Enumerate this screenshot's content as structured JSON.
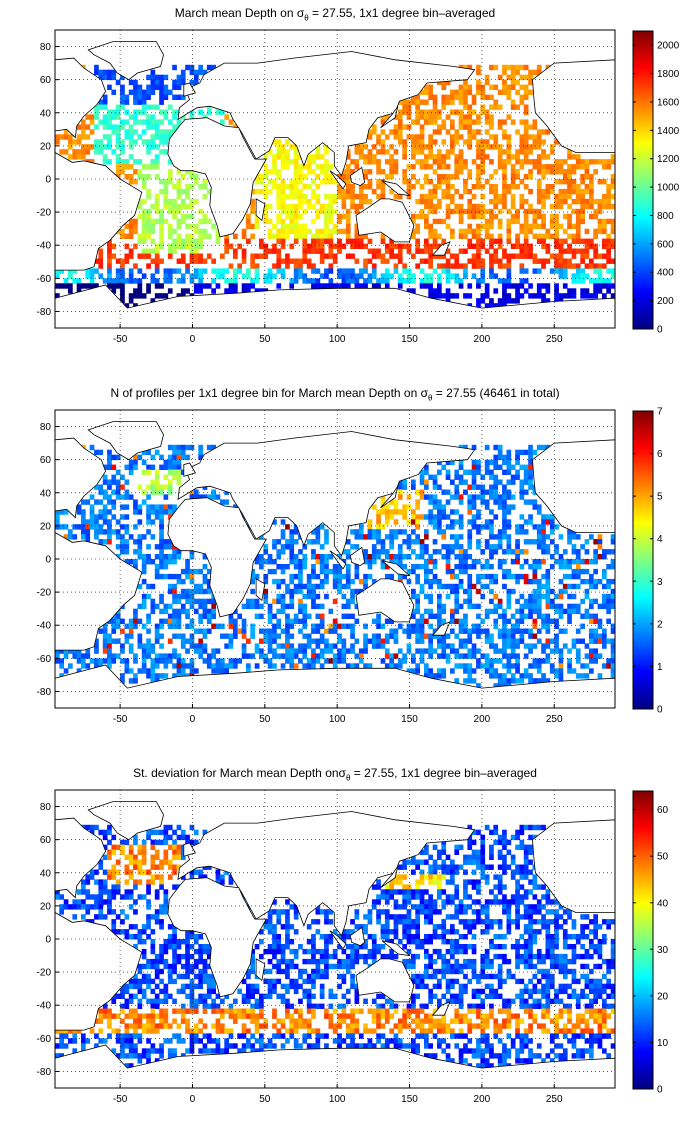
{
  "chart_data": [
    {
      "type": "heatmap",
      "title_pre": "March mean Depth on σ",
      "title_sub": "θ",
      "title_post": " = 27.55, 1x1 degree bin–averaged",
      "x_ticks": [
        "-50",
        "0",
        "50",
        "100",
        "150",
        "200",
        "250"
      ],
      "y_ticks": [
        "80",
        "60",
        "40",
        "20",
        "0",
        "-20",
        "-40",
        "-60",
        "-80"
      ],
      "xlim": [
        -95,
        292
      ],
      "ylim": [
        -90,
        90
      ],
      "grid": true,
      "colormap": "jet",
      "colorbar": {
        "min": 0,
        "max": 2100,
        "ticks": [
          "0",
          "200",
          "400",
          "600",
          "800",
          "1000",
          "1200",
          "1400",
          "1600",
          "1800",
          "2000"
        ]
      }
    },
    {
      "type": "heatmap",
      "title_pre": "N of profiles per 1x1 degree bin for March mean Depth on σ",
      "title_sub": "θ",
      "title_post": " = 27.55 (46461 in total)",
      "x_ticks": [
        "-50",
        "0",
        "50",
        "100",
        "150",
        "200",
        "250"
      ],
      "y_ticks": [
        "80",
        "60",
        "40",
        "20",
        "0",
        "-20",
        "-40",
        "-60",
        "-80"
      ],
      "xlim": [
        -95,
        292
      ],
      "ylim": [
        -90,
        90
      ],
      "grid": true,
      "colormap": "jet",
      "colorbar": {
        "min": 0,
        "max": 7,
        "ticks": [
          "0",
          "1",
          "2",
          "3",
          "4",
          "5",
          "6",
          "7"
        ]
      }
    },
    {
      "type": "heatmap",
      "title_pre": "St. deviation for March mean Depth onσ",
      "title_sub": "θ",
      "title_post": " = 27.55, 1x1 degree bin–averaged",
      "x_ticks": [
        "-50",
        "0",
        "50",
        "100",
        "150",
        "200",
        "250"
      ],
      "y_ticks": [
        "80",
        "60",
        "40",
        "20",
        "0",
        "-20",
        "-40",
        "-60",
        "-80"
      ],
      "xlim": [
        -95,
        292
      ],
      "ylim": [
        -90,
        90
      ],
      "grid": true,
      "colormap": "jet",
      "colorbar": {
        "min": 0,
        "max": 64,
        "ticks": [
          "0",
          "10",
          "20",
          "30",
          "40",
          "50",
          "60"
        ]
      }
    }
  ]
}
